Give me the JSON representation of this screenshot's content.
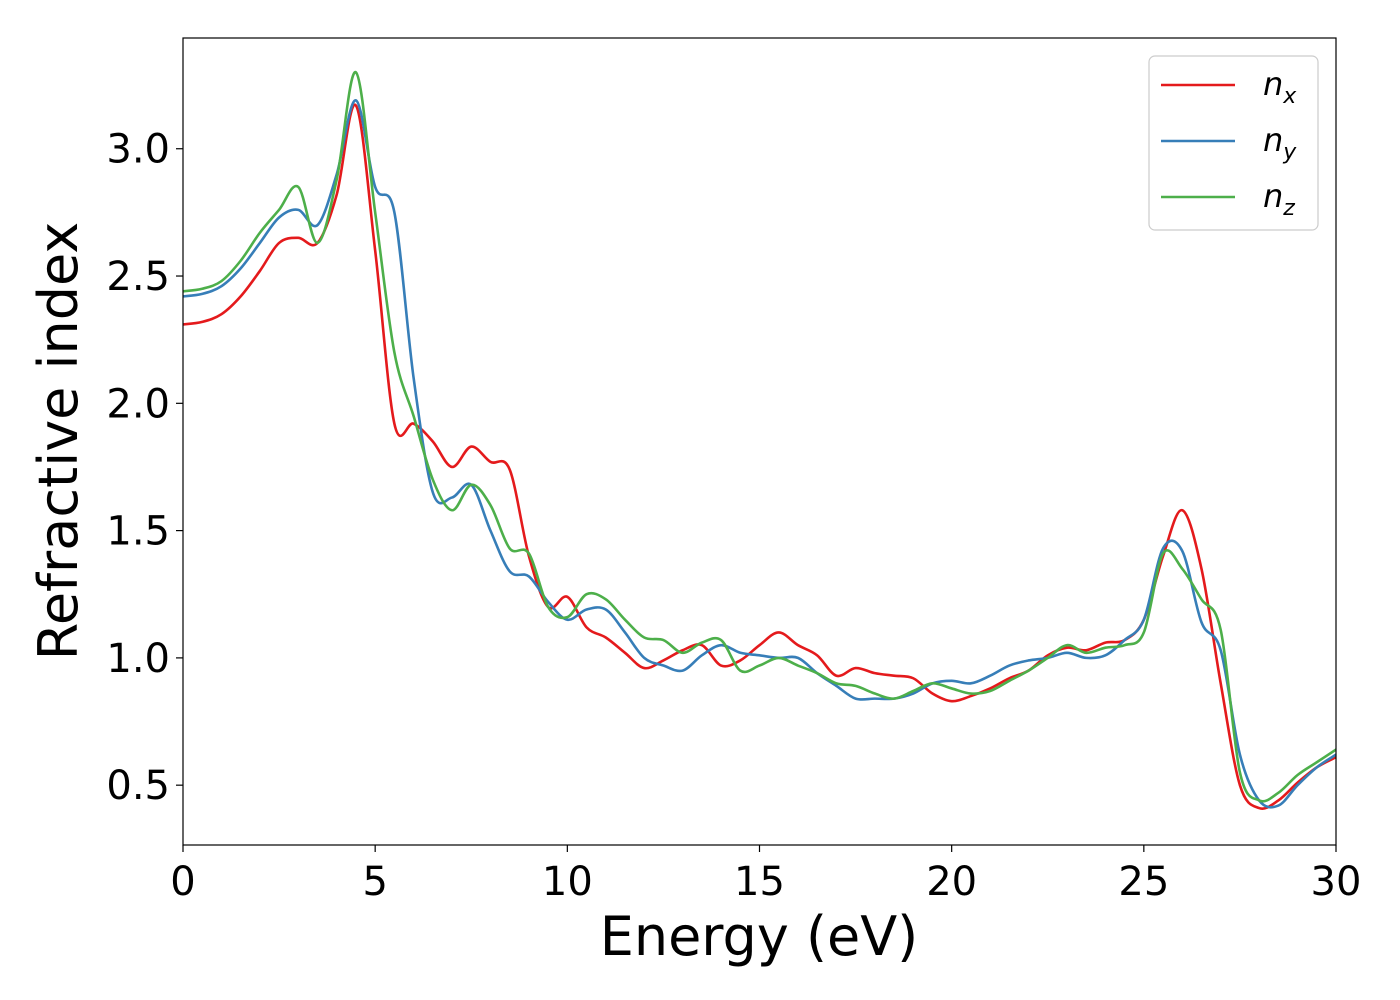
{
  "chart_data": {
    "type": "line",
    "xlabel": "Energy (eV)",
    "ylabel": "Refractive index",
    "xlim": [
      0,
      30
    ],
    "ylim": [
      0.265,
      3.435
    ],
    "xticks": [
      0,
      5,
      10,
      15,
      20,
      25,
      30
    ],
    "xtick_labels": [
      "0",
      "5",
      "10",
      "15",
      "20",
      "25",
      "30"
    ],
    "yticks": [
      0.5,
      1.0,
      1.5,
      2.0,
      2.5,
      3.0
    ],
    "ytick_labels": [
      "0.5",
      "1.0",
      "1.5",
      "2.0",
      "2.5",
      "3.0"
    ],
    "grid": false,
    "legend_position": "top-right",
    "series": [
      {
        "name": "n",
        "subscript": "x",
        "color": "#e41a1c",
        "x": [
          0,
          0.5,
          1.0,
          1.5,
          2.0,
          2.5,
          3.0,
          3.5,
          4.0,
          4.5,
          5.0,
          5.5,
          6.0,
          6.5,
          7.0,
          7.5,
          8.0,
          8.5,
          9.0,
          9.5,
          10.0,
          10.5,
          11.0,
          11.5,
          12.0,
          12.5,
          13.0,
          13.5,
          14.0,
          14.5,
          15.0,
          15.5,
          16.0,
          16.5,
          17.0,
          17.5,
          18.0,
          18.5,
          19.0,
          19.5,
          20.0,
          20.5,
          21.0,
          21.5,
          22.0,
          22.5,
          23.0,
          23.5,
          24.0,
          24.5,
          25.0,
          25.5,
          26.0,
          26.5,
          27.0,
          27.5,
          28.0,
          28.5,
          29.0,
          29.5,
          30.0
        ],
        "y": [
          2.31,
          2.32,
          2.35,
          2.42,
          2.52,
          2.63,
          2.65,
          2.63,
          2.82,
          3.17,
          2.6,
          1.92,
          1.92,
          1.85,
          1.75,
          1.83,
          1.77,
          1.74,
          1.4,
          1.2,
          1.24,
          1.12,
          1.08,
          1.02,
          0.96,
          0.99,
          1.03,
          1.05,
          0.97,
          0.99,
          1.05,
          1.1,
          1.05,
          1.01,
          0.93,
          0.96,
          0.94,
          0.93,
          0.92,
          0.86,
          0.83,
          0.85,
          0.88,
          0.92,
          0.95,
          1.01,
          1.04,
          1.03,
          1.06,
          1.07,
          1.15,
          1.4,
          1.58,
          1.35,
          0.9,
          0.5,
          0.41,
          0.44,
          0.51,
          0.57,
          0.61
        ]
      },
      {
        "name": "n",
        "subscript": "y",
        "color": "#377eb8",
        "x": [
          0,
          0.5,
          1.0,
          1.5,
          2.0,
          2.5,
          3.0,
          3.5,
          4.0,
          4.5,
          5.0,
          5.5,
          6.0,
          6.5,
          7.0,
          7.5,
          8.0,
          8.5,
          9.0,
          9.5,
          10.0,
          10.5,
          11.0,
          11.5,
          12.0,
          12.5,
          13.0,
          13.5,
          14.0,
          14.5,
          15.0,
          15.5,
          16.0,
          16.5,
          17.0,
          17.5,
          18.0,
          18.5,
          19.0,
          19.5,
          20.0,
          20.5,
          21.0,
          21.5,
          22.0,
          22.5,
          23.0,
          23.5,
          24.0,
          24.5,
          25.0,
          25.5,
          26.0,
          26.5,
          27.0,
          27.5,
          28.0,
          28.5,
          29.0,
          29.5,
          30.0
        ],
        "y": [
          2.42,
          2.43,
          2.46,
          2.53,
          2.63,
          2.73,
          2.76,
          2.7,
          2.9,
          3.19,
          2.85,
          2.75,
          2.1,
          1.65,
          1.63,
          1.68,
          1.5,
          1.34,
          1.32,
          1.22,
          1.15,
          1.19,
          1.19,
          1.1,
          1.0,
          0.97,
          0.95,
          1.01,
          1.05,
          1.02,
          1.01,
          1.0,
          1.0,
          0.94,
          0.89,
          0.84,
          0.84,
          0.84,
          0.86,
          0.9,
          0.91,
          0.9,
          0.93,
          0.97,
          0.99,
          1.0,
          1.02,
          1.0,
          1.01,
          1.07,
          1.15,
          1.43,
          1.42,
          1.14,
          1.03,
          0.62,
          0.44,
          0.42,
          0.5,
          0.57,
          0.62
        ]
      },
      {
        "name": "n",
        "subscript": "z",
        "color": "#4daf4a",
        "x": [
          0,
          0.5,
          1.0,
          1.5,
          2.0,
          2.5,
          3.0,
          3.5,
          4.0,
          4.5,
          5.0,
          5.5,
          6.0,
          6.5,
          7.0,
          7.5,
          8.0,
          8.5,
          9.0,
          9.5,
          10.0,
          10.5,
          11.0,
          11.5,
          12.0,
          12.5,
          13.0,
          13.5,
          14.0,
          14.5,
          15.0,
          15.5,
          16.0,
          16.5,
          17.0,
          17.5,
          18.0,
          18.5,
          19.0,
          19.5,
          20.0,
          20.5,
          21.0,
          21.5,
          22.0,
          22.5,
          23.0,
          23.5,
          24.0,
          24.5,
          25.0,
          25.5,
          26.0,
          26.5,
          27.0,
          27.5,
          28.0,
          28.5,
          29.0,
          29.5,
          30.0
        ],
        "y": [
          2.44,
          2.45,
          2.48,
          2.56,
          2.67,
          2.76,
          2.85,
          2.63,
          2.88,
          3.3,
          2.75,
          2.2,
          1.95,
          1.7,
          1.58,
          1.68,
          1.6,
          1.43,
          1.41,
          1.2,
          1.16,
          1.25,
          1.23,
          1.15,
          1.08,
          1.07,
          1.02,
          1.06,
          1.07,
          0.95,
          0.97,
          1.0,
          0.97,
          0.94,
          0.9,
          0.89,
          0.86,
          0.84,
          0.87,
          0.9,
          0.88,
          0.86,
          0.87,
          0.91,
          0.95,
          1.0,
          1.05,
          1.02,
          1.04,
          1.05,
          1.1,
          1.41,
          1.35,
          1.23,
          1.11,
          0.55,
          0.44,
          0.47,
          0.54,
          0.59,
          0.64
        ]
      }
    ]
  }
}
